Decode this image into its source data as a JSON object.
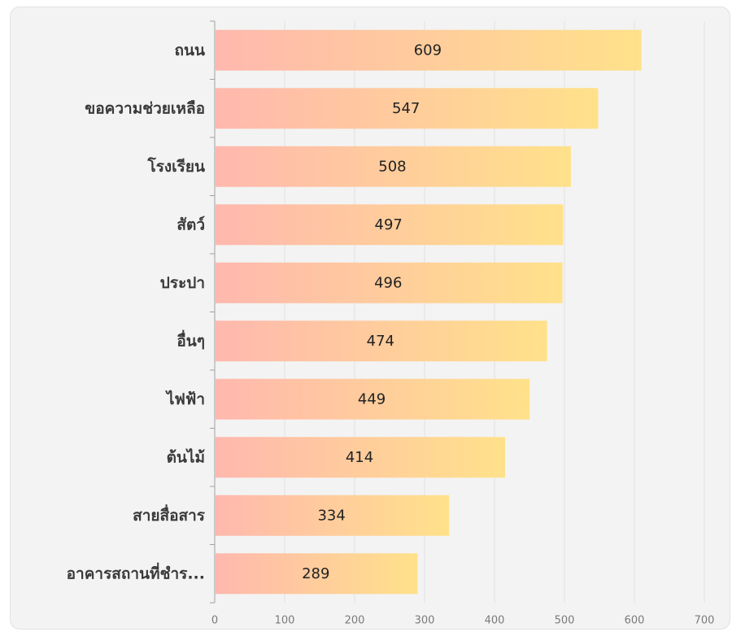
{
  "chart_data": {
    "type": "bar",
    "orientation": "horizontal",
    "categories": [
      "ถนน",
      "ขอความช่วยเหลือ",
      "โรงเรียน",
      "สัตว์",
      "ประปา",
      "อื่นๆ",
      "ไฟฟ้า",
      "ต้นไม้",
      "สายสื่อสาร",
      "อาคารสถานที่ชำร..."
    ],
    "values": [
      609,
      547,
      508,
      497,
      496,
      474,
      449,
      414,
      334,
      289
    ],
    "xlim": [
      0,
      700
    ],
    "xticks": [
      0,
      100,
      200,
      300,
      400,
      500,
      600,
      700
    ],
    "grid": "vertical",
    "bar_gradient": [
      "#ffb8ae",
      "#ffe18a"
    ],
    "data_labels": "inside-center"
  }
}
